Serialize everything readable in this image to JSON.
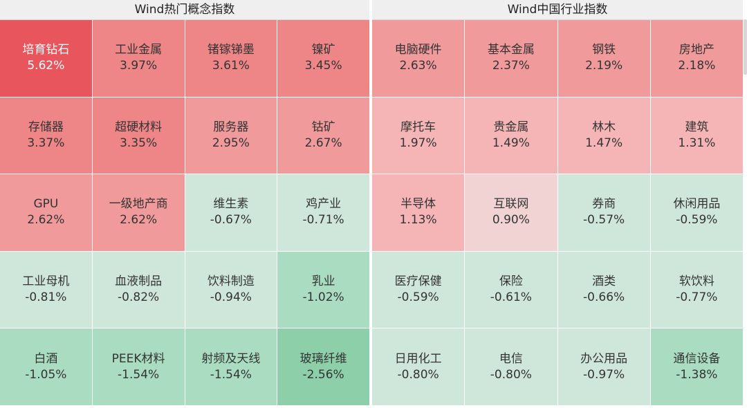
{
  "left_panel": {
    "title": "Wind热门概念指数",
    "tiles": [
      {
        "name": "培育钻石",
        "change": "5.62%",
        "color": "#e8555c",
        "text_color": "#ffffff"
      },
      {
        "name": "工业金属",
        "change": "3.97%",
        "color": "#ee8586"
      },
      {
        "name": "锗镓锑墨",
        "change": "3.61%",
        "color": "#ee8586"
      },
      {
        "name": "镍矿",
        "change": "3.45%",
        "color": "#ee8586"
      },
      {
        "name": "存储器",
        "change": "3.37%",
        "color": "#ee8586"
      },
      {
        "name": "超硬材料",
        "change": "3.35%",
        "color": "#ee8586"
      },
      {
        "name": "服务器",
        "change": "2.95%",
        "color": "#f09a9b"
      },
      {
        "name": "钴矿",
        "change": "2.67%",
        "color": "#f09a9b"
      },
      {
        "name": "GPU",
        "change": "2.62%",
        "color": "#f09a9b"
      },
      {
        "name": "一级地产商",
        "change": "2.62%",
        "color": "#f09a9b"
      },
      {
        "name": "维生素",
        "change": "-0.67%",
        "color": "#cfe7db"
      },
      {
        "name": "鸡产业",
        "change": "-0.71%",
        "color": "#cfe7db"
      },
      {
        "name": "工业母机",
        "change": "-0.81%",
        "color": "#cfe7db"
      },
      {
        "name": "血液制品",
        "change": "-0.82%",
        "color": "#cfe7db"
      },
      {
        "name": "饮料制造",
        "change": "-0.94%",
        "color": "#cfe7db"
      },
      {
        "name": "乳业",
        "change": "-1.02%",
        "color": "#a9dcc1"
      },
      {
        "name": "白酒",
        "change": "-1.05%",
        "color": "#a9dcc1"
      },
      {
        "name": "PEEK材料",
        "change": "-1.54%",
        "color": "#a9dcc1"
      },
      {
        "name": "射频及天线",
        "change": "-1.54%",
        "color": "#a9dcc1"
      },
      {
        "name": "玻璃纤维",
        "change": "-2.56%",
        "color": "#8ccfa9"
      }
    ]
  },
  "right_panel": {
    "title": "Wind中国行业指数",
    "tiles": [
      {
        "name": "电脑硬件",
        "change": "2.63%",
        "color": "#f09a9b"
      },
      {
        "name": "基本金属",
        "change": "2.37%",
        "color": "#f09a9b"
      },
      {
        "name": "钢铁",
        "change": "2.19%",
        "color": "#f09a9b"
      },
      {
        "name": "房地产",
        "change": "2.18%",
        "color": "#f09a9b"
      },
      {
        "name": "摩托车",
        "change": "1.97%",
        "color": "#f5b5b6"
      },
      {
        "name": "贵金属",
        "change": "1.49%",
        "color": "#f5b5b6"
      },
      {
        "name": "林木",
        "change": "1.47%",
        "color": "#f5b5b6"
      },
      {
        "name": "建筑",
        "change": "1.31%",
        "color": "#f5b5b6"
      },
      {
        "name": "半导体",
        "change": "1.13%",
        "color": "#f5b5b6"
      },
      {
        "name": "互联网",
        "change": "0.90%",
        "color": "#f1d3d4"
      },
      {
        "name": "券商",
        "change": "-0.57%",
        "color": "#cfe7db"
      },
      {
        "name": "休闲用品",
        "change": "-0.59%",
        "color": "#cfe7db"
      },
      {
        "name": "医疗保健",
        "change": "-0.59%",
        "color": "#cfe7db"
      },
      {
        "name": "保险",
        "change": "-0.61%",
        "color": "#cfe7db"
      },
      {
        "name": "酒类",
        "change": "-0.66%",
        "color": "#cfe7db"
      },
      {
        "name": "软饮料",
        "change": "-0.77%",
        "color": "#cfe7db"
      },
      {
        "name": "日用化工",
        "change": "-0.80%",
        "color": "#cfe7db"
      },
      {
        "name": "电信",
        "change": "-0.80%",
        "color": "#cfe7db"
      },
      {
        "name": "办公用品",
        "change": "-0.97%",
        "color": "#cfe7db"
      },
      {
        "name": "通信设备",
        "change": "-1.38%",
        "color": "#a9dcc1"
      }
    ]
  }
}
